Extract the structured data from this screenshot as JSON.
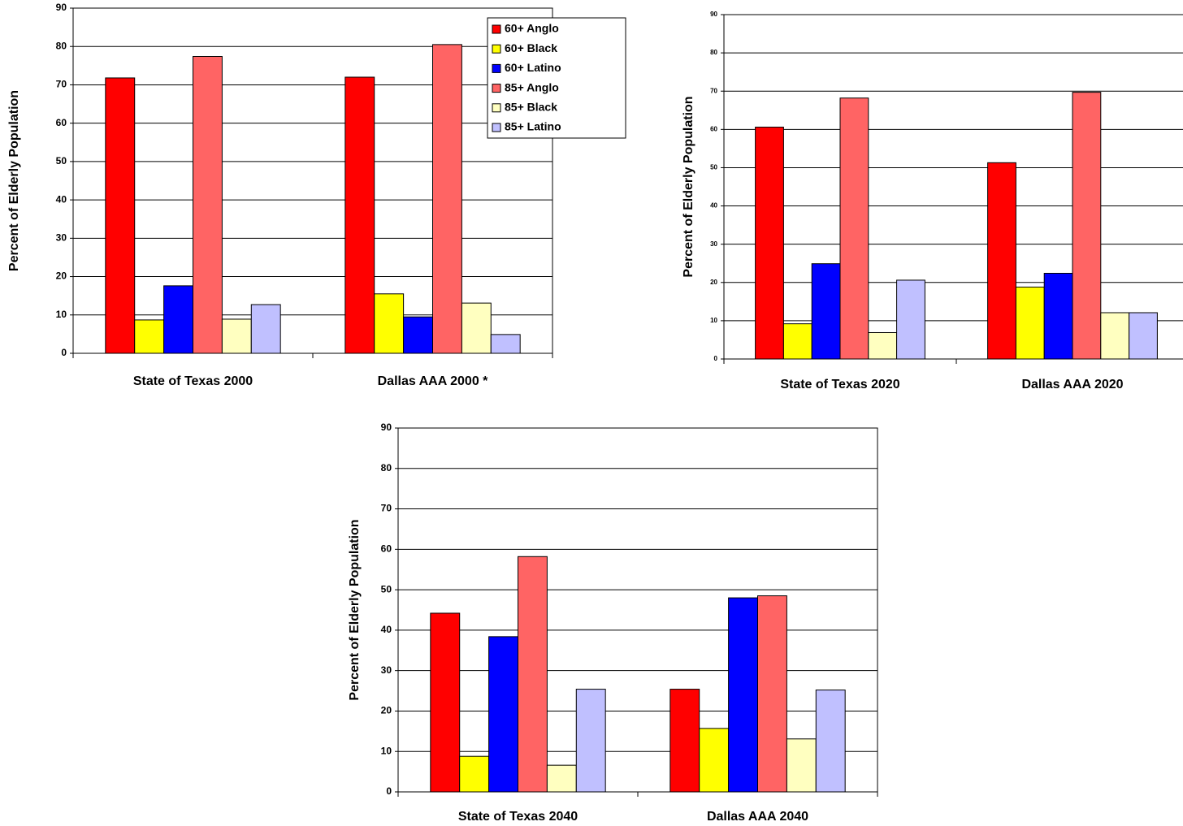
{
  "chart_data": [
    {
      "type": "bar",
      "y_label": "Percent of Elderly Population",
      "categories": [
        "State of Texas 2000",
        "Dallas AAA 2000 *"
      ],
      "series": [
        {
          "name": "60+ Anglo",
          "color": "#ff0000",
          "values": [
            71.8,
            72.0
          ]
        },
        {
          "name": "60+ Black",
          "color": "#ffff00",
          "values": [
            8.7,
            15.5
          ]
        },
        {
          "name": "60+ Latino",
          "color": "#0000ff",
          "values": [
            17.6,
            9.5
          ]
        },
        {
          "name": "85+ Anglo",
          "color": "#ff6464",
          "values": [
            77.4,
            80.5
          ]
        },
        {
          "name": "85+ Black",
          "color": "#ffffc0",
          "values": [
            8.9,
            13.1
          ]
        },
        {
          "name": "85+ Latino",
          "color": "#c0c0ff",
          "values": [
            12.7,
            4.9
          ]
        }
      ],
      "ylim": [
        0,
        90
      ],
      "yticks": [
        0,
        10,
        20,
        30,
        40,
        50,
        60,
        70,
        80,
        90
      ],
      "grid": true,
      "legend": "upper right"
    },
    {
      "type": "bar",
      "y_label": "Percent of Elderly Population",
      "categories": [
        "State of Texas 2020",
        "Dallas AAA 2020"
      ],
      "series": [
        {
          "color": "#ff0000",
          "values": [
            60.6,
            51.3
          ]
        },
        {
          "color": "#ffff00",
          "values": [
            9.2,
            18.8
          ]
        },
        {
          "color": "#0000ff",
          "values": [
            24.9,
            22.4
          ]
        },
        {
          "color": "#ff6464",
          "values": [
            68.2,
            69.7
          ]
        },
        {
          "color": "#ffffc0",
          "values": [
            6.9,
            12.1
          ]
        },
        {
          "color": "#c0c0ff",
          "values": [
            20.6,
            12.1
          ]
        }
      ],
      "ylim": [
        0,
        90
      ],
      "yticks": [
        0,
        10,
        20,
        30,
        40,
        50,
        60,
        70,
        80,
        90
      ],
      "grid": true
    },
    {
      "type": "bar",
      "y_label": "Percent of Elderly Population",
      "categories": [
        "State of Texas 2040",
        "Dallas AAA 2040"
      ],
      "series": [
        {
          "color": "#ff0000",
          "values": [
            44.2,
            25.4
          ]
        },
        {
          "color": "#ffff00",
          "values": [
            8.8,
            15.7
          ]
        },
        {
          "color": "#0000ff",
          "values": [
            38.4,
            48.0
          ]
        },
        {
          "color": "#ff6464",
          "values": [
            58.2,
            48.5
          ]
        },
        {
          "color": "#ffffc0",
          "values": [
            6.6,
            13.1
          ]
        },
        {
          "color": "#c0c0ff",
          "values": [
            25.4,
            25.2
          ]
        }
      ],
      "ylim": [
        0,
        90
      ],
      "yticks": [
        0,
        10,
        20,
        30,
        40,
        50,
        60,
        70,
        80,
        90
      ],
      "grid": true
    }
  ]
}
